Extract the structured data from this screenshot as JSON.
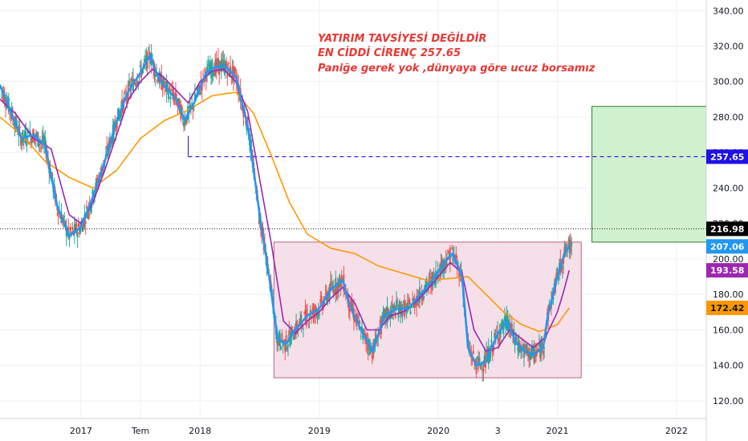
{
  "chart_data": {
    "type": "line",
    "title": "",
    "y_ticks": [
      120,
      140,
      160,
      180,
      200,
      220,
      240,
      260,
      280,
      300,
      320,
      340
    ],
    "y_tick_labels": [
      "120.00",
      "140.00",
      "160.00",
      "180.00",
      "200.00",
      "220.00",
      "240.00",
      "260.00",
      "280.00",
      "300.00",
      "320.00",
      "340.00"
    ],
    "ylim": [
      110,
      346
    ],
    "x_labels": [
      {
        "label": "2017",
        "t": 2017.0
      },
      {
        "label": "Tem",
        "t": 2017.5
      },
      {
        "label": "2018",
        "t": 2018.0
      },
      {
        "label": "2019",
        "t": 2019.0
      },
      {
        "label": "2020",
        "t": 2020.0
      },
      {
        "label": "3",
        "t": 2020.5
      },
      {
        "label": "2021",
        "t": 2021.0
      },
      {
        "label": "2022",
        "t": 2022.0
      }
    ],
    "xlim": [
      2016.32,
      2022.25
    ],
    "grid": true,
    "annotations": [
      "YATIRIM TAVSİYESİ DEĞİLDİR",
      "EN CİDDİ CİRENÇ 257.65",
      "Paniğe gerek yok ,dünyaya göre ucuz borsamız"
    ],
    "annotation_color": "#e53935",
    "price_labels": [
      {
        "value": "257.65",
        "color": "#1e10e6",
        "text_color": "#ffffff",
        "y": 257.65
      },
      {
        "value": "216.98",
        "color": "#000000",
        "text_color": "#ffffff",
        "y": 216.98
      },
      {
        "value": "207.06",
        "color": "#2196f3",
        "text_color": "#ffffff",
        "y": 207.06
      },
      {
        "value": "193.58",
        "color": "#9c27b0",
        "text_color": "#ffffff",
        "y": 193.58
      },
      {
        "value": "172.42",
        "color": "#ff9800",
        "text_color": "#131722",
        "y": 172.42
      }
    ],
    "resistance_level": 257.65,
    "current_price": 216.98,
    "resistance_line_start": 2017.9,
    "zones": [
      {
        "name": "target-zone",
        "x": [
          2021.29,
          2022.25
        ],
        "y": [
          209.5,
          286
        ],
        "fill": "#c8efc6",
        "stroke": "#2e7d32"
      },
      {
        "name": "range-zone",
        "x": [
          2018.62,
          2021.2
        ],
        "y": [
          133,
          209.5
        ],
        "fill": "#f3dbe5",
        "stroke": "#c06080"
      }
    ],
    "series": [
      {
        "color": "#2196f3",
        "last": 207.06,
        "points": [
          [
            2016.32,
            298
          ],
          [
            2016.4,
            285
          ],
          [
            2016.5,
            268
          ],
          [
            2016.6,
            270
          ],
          [
            2016.7,
            264
          ],
          [
            2016.8,
            230
          ],
          [
            2016.9,
            213
          ],
          [
            2017.0,
            218
          ],
          [
            2017.1,
            235
          ],
          [
            2017.2,
            255
          ],
          [
            2017.3,
            278
          ],
          [
            2017.4,
            295
          ],
          [
            2017.5,
            305
          ],
          [
            2017.58,
            315
          ],
          [
            2017.65,
            302
          ],
          [
            2017.72,
            296
          ],
          [
            2017.8,
            290
          ],
          [
            2017.87,
            278
          ],
          [
            2017.95,
            288
          ],
          [
            2018.05,
            305
          ],
          [
            2018.12,
            308
          ],
          [
            2018.2,
            309
          ],
          [
            2018.3,
            303
          ],
          [
            2018.4,
            275
          ],
          [
            2018.5,
            225
          ],
          [
            2018.58,
            190
          ],
          [
            2018.65,
            155
          ],
          [
            2018.72,
            152
          ],
          [
            2018.8,
            160
          ],
          [
            2018.9,
            168
          ],
          [
            2019.0,
            172
          ],
          [
            2019.1,
            183
          ],
          [
            2019.2,
            188
          ],
          [
            2019.25,
            175
          ],
          [
            2019.35,
            160
          ],
          [
            2019.45,
            148
          ],
          [
            2019.55,
            168
          ],
          [
            2019.65,
            172
          ],
          [
            2019.75,
            172
          ],
          [
            2019.85,
            180
          ],
          [
            2019.95,
            188
          ],
          [
            2020.05,
            198
          ],
          [
            2020.12,
            203
          ],
          [
            2020.2,
            190
          ],
          [
            2020.25,
            150
          ],
          [
            2020.32,
            140
          ],
          [
            2020.4,
            142
          ],
          [
            2020.5,
            158
          ],
          [
            2020.58,
            165
          ],
          [
            2020.65,
            153
          ],
          [
            2020.72,
            148
          ],
          [
            2020.8,
            146
          ],
          [
            2020.88,
            150
          ],
          [
            2020.92,
            168
          ],
          [
            2021.0,
            190
          ],
          [
            2021.06,
            203
          ],
          [
            2021.1,
            207.06
          ]
        ]
      },
      {
        "color": "#9c27b0",
        "last": 193.58,
        "points": [
          [
            2016.32,
            290
          ],
          [
            2016.45,
            282
          ],
          [
            2016.6,
            268
          ],
          [
            2016.75,
            262
          ],
          [
            2016.9,
            225
          ],
          [
            2017.0,
            220
          ],
          [
            2017.1,
            232
          ],
          [
            2017.2,
            250
          ],
          [
            2017.3,
            270
          ],
          [
            2017.4,
            290
          ],
          [
            2017.5,
            300
          ],
          [
            2017.6,
            307
          ],
          [
            2017.7,
            302
          ],
          [
            2017.8,
            295
          ],
          [
            2017.9,
            288
          ],
          [
            2018.0,
            300
          ],
          [
            2018.1,
            306
          ],
          [
            2018.2,
            307
          ],
          [
            2018.3,
            300
          ],
          [
            2018.4,
            283
          ],
          [
            2018.5,
            245
          ],
          [
            2018.6,
            208
          ],
          [
            2018.7,
            165
          ],
          [
            2018.8,
            158
          ],
          [
            2018.9,
            165
          ],
          [
            2019.0,
            170
          ],
          [
            2019.1,
            178
          ],
          [
            2019.2,
            184
          ],
          [
            2019.3,
            175
          ],
          [
            2019.4,
            160
          ],
          [
            2019.5,
            160
          ],
          [
            2019.6,
            168
          ],
          [
            2019.7,
            170
          ],
          [
            2019.8,
            175
          ],
          [
            2019.9,
            182
          ],
          [
            2020.0,
            190
          ],
          [
            2020.1,
            198
          ],
          [
            2020.2,
            192
          ],
          [
            2020.3,
            160
          ],
          [
            2020.4,
            148
          ],
          [
            2020.5,
            150
          ],
          [
            2020.6,
            160
          ],
          [
            2020.7,
            155
          ],
          [
            2020.8,
            150
          ],
          [
            2020.9,
            156
          ],
          [
            2021.0,
            170
          ],
          [
            2021.05,
            181
          ],
          [
            2021.1,
            193.58
          ]
        ]
      },
      {
        "color": "#ff9800",
        "last": 172.42,
        "points": [
          [
            2016.32,
            280
          ],
          [
            2016.5,
            270
          ],
          [
            2016.7,
            255
          ],
          [
            2016.9,
            246
          ],
          [
            2017.1,
            240
          ],
          [
            2017.3,
            250
          ],
          [
            2017.5,
            268
          ],
          [
            2017.7,
            278
          ],
          [
            2017.9,
            284
          ],
          [
            2018.1,
            292
          ],
          [
            2018.3,
            294
          ],
          [
            2018.45,
            282
          ],
          [
            2018.6,
            258
          ],
          [
            2018.75,
            232
          ],
          [
            2018.9,
            214
          ],
          [
            2019.1,
            206
          ],
          [
            2019.3,
            203
          ],
          [
            2019.5,
            196
          ],
          [
            2019.7,
            192
          ],
          [
            2019.9,
            188
          ],
          [
            2020.1,
            189
          ],
          [
            2020.25,
            190
          ],
          [
            2020.4,
            180
          ],
          [
            2020.55,
            170
          ],
          [
            2020.7,
            163
          ],
          [
            2020.85,
            159
          ],
          [
            2021.0,
            163
          ],
          [
            2021.1,
            172.42
          ]
        ]
      }
    ]
  }
}
